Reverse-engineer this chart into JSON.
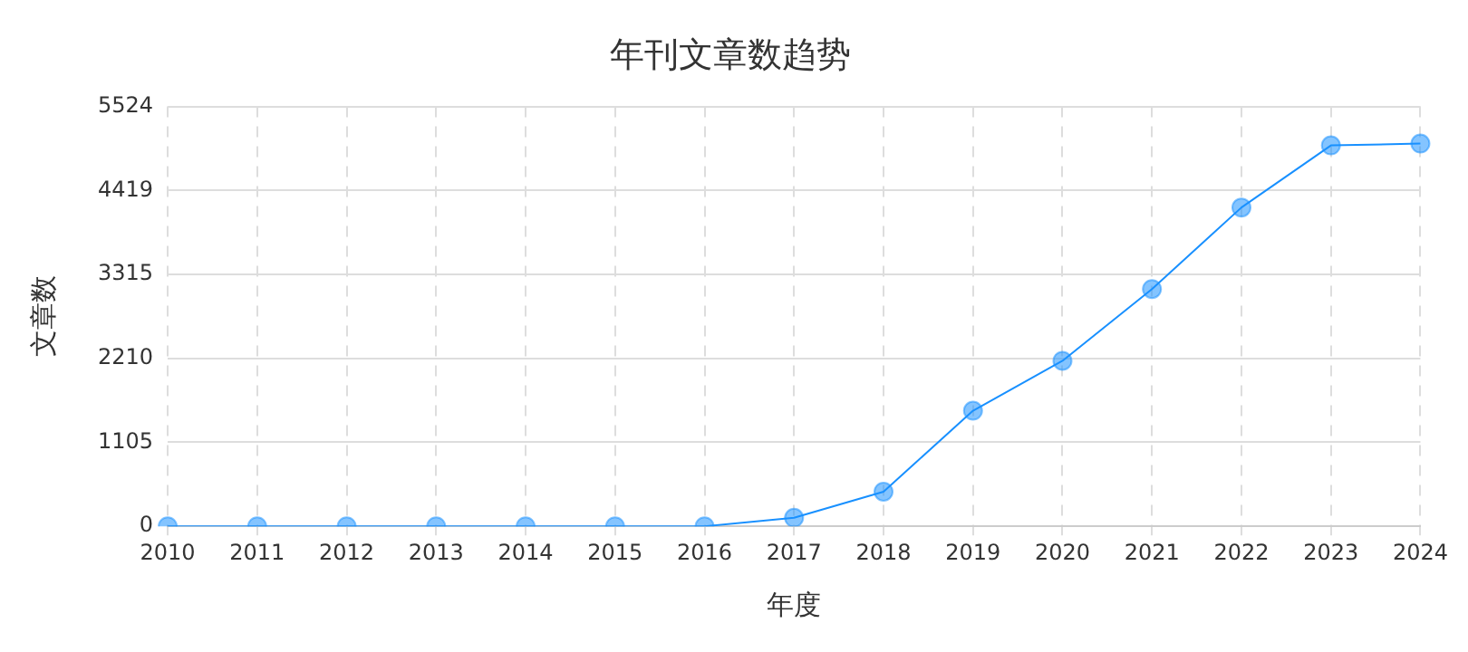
{
  "chart_data": {
    "type": "line",
    "title": "年刊文章数趋势",
    "xlabel": "年度",
    "ylabel": "文章数",
    "categories": [
      "2010",
      "2011",
      "2012",
      "2013",
      "2014",
      "2015",
      "2016",
      "2017",
      "2018",
      "2019",
      "2020",
      "2021",
      "2022",
      "2023",
      "2024"
    ],
    "series": [
      {
        "color": "#1890ff",
        "values": [
          0,
          0,
          0,
          0,
          0,
          0,
          0,
          112,
          456,
          1521,
          2178,
          3122,
          4195,
          5012,
          5036
        ]
      }
    ],
    "ylim": [
      0,
      5524
    ],
    "yticks": [
      0,
      1105,
      2210,
      3315,
      4419,
      5524
    ],
    "grid": true,
    "legend": false,
    "marker": "circle",
    "line_style": "solid"
  }
}
